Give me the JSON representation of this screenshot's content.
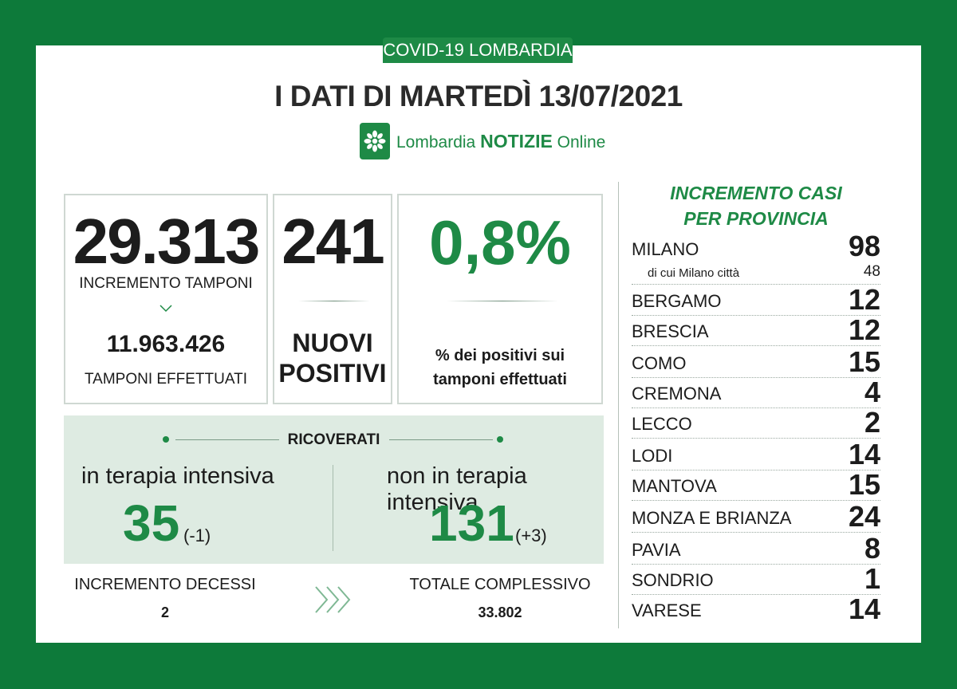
{
  "header": {
    "badge": "COVID-19 LOMBARDIA",
    "title": "I DATI DI MARTEDÌ 13/07/2021",
    "logo_prefix": "Lombardia",
    "logo_bold": "NOTIZIE",
    "logo_suffix": "Online",
    "logo_icon": "flower-icon"
  },
  "tamponi": {
    "increment": "29.313",
    "increment_label": "INCREMENTO TAMPONI",
    "total": "11.963.426",
    "total_label": "TAMPONI EFFETTUATI"
  },
  "positivi": {
    "value": "241",
    "label_line1": "NUOVI",
    "label_line2": "POSITIVI"
  },
  "percentuale": {
    "value": "0,8%",
    "label_line1": "% dei positivi sui",
    "label_line2": "tamponi effettuati"
  },
  "ricoverati": {
    "heading": "RICOVERATI",
    "intensiva_label": "in terapia intensiva",
    "intensiva_value": "35",
    "intensiva_delta": "(-1)",
    "non_intensiva_label": "non in terapia intensiva",
    "non_intensiva_value": "131",
    "non_intensiva_delta": "(+3)"
  },
  "decessi": {
    "increment_label": "INCREMENTO DECESSI",
    "increment_value": "2",
    "total_label": "TOTALE COMPLESSIVO",
    "total_value": "33.802"
  },
  "province": {
    "heading_line1": "INCREMENTO CASI",
    "heading_line2": "PER PROVINCIA",
    "milano_citta_label": "di cui Milano città",
    "milano_citta_value": "48",
    "items": [
      {
        "name": "MILANO",
        "value": "98"
      },
      {
        "name": "BERGAMO",
        "value": "12"
      },
      {
        "name": "BRESCIA",
        "value": "12"
      },
      {
        "name": "COMO",
        "value": "15"
      },
      {
        "name": "CREMONA",
        "value": "4"
      },
      {
        "name": "LECCO",
        "value": "2"
      },
      {
        "name": "LODI",
        "value": "14"
      },
      {
        "name": "MANTOVA",
        "value": "15"
      },
      {
        "name": "MONZA E BRIANZA",
        "value": "24"
      },
      {
        "name": "PAVIA",
        "value": "8"
      },
      {
        "name": "SONDRIO",
        "value": "1"
      },
      {
        "name": "VARESE",
        "value": "14"
      }
    ]
  },
  "colors": {
    "frame": "#0d7a3a",
    "accent": "#1e8a46",
    "panel": "#deebe2"
  }
}
